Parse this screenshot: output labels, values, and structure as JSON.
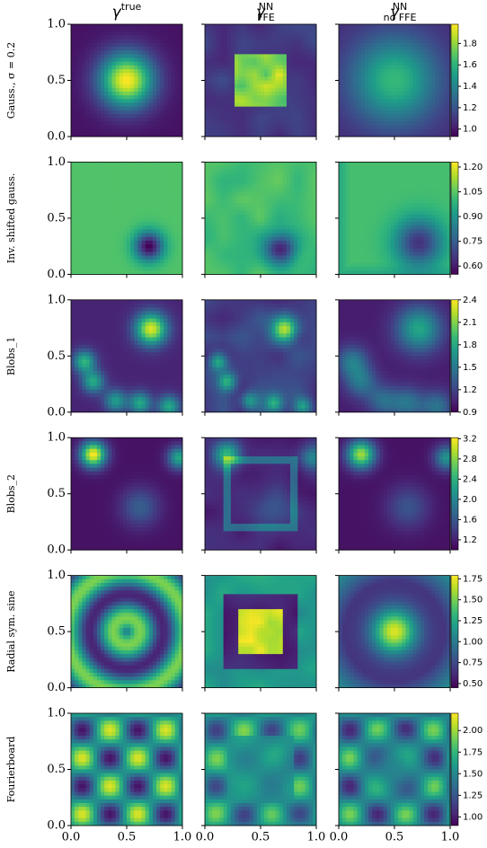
{
  "chart_data": {
    "type": "heatmap-grid",
    "columns": [
      {
        "symbol": "γ",
        "sup": "true"
      },
      {
        "symbol": "γ",
        "sup": "NN",
        "sub": "FFE"
      },
      {
        "symbol": "γ",
        "sup": "NN",
        "sub": "no FFE"
      }
    ],
    "xlim": [
      0,
      1
    ],
    "ylim": [
      0,
      1
    ],
    "xticks": [
      {
        "value": 0,
        "label": "0.0"
      },
      0.5,
      {
        "value": 1,
        "label": "1.0"
      }
    ],
    "yticks": [
      {
        "value": 0,
        "label": "0.0"
      },
      0.5,
      {
        "value": 1,
        "label": "1.0"
      }
    ],
    "colormap": "viridis",
    "rows": [
      {
        "label": "Gauss., σ = 0.2",
        "cbar_lim": [
          0.93,
          1.98
        ],
        "cbar_ticks": [
          {
            "value": 1,
            "label": "1.0"
          },
          1.2,
          1.4,
          1.6,
          1.8
        ]
      },
      {
        "label": "Inv. shifted gauss.",
        "cbar_lim": [
          0.55,
          1.23
        ],
        "cbar_ticks": [
          {
            "value": 0.6,
            "label": "0.60"
          },
          {
            "value": 0.75,
            "label": "0.75"
          },
          {
            "value": 0.9,
            "label": "0.90"
          },
          {
            "value": 1.05,
            "label": "1.05"
          },
          {
            "value": 1.2,
            "label": "1.20"
          }
        ]
      },
      {
        "label": "Blobs_1",
        "cbar_lim": [
          0.9,
          2.4
        ],
        "cbar_ticks": [
          0.9,
          1.2,
          1.5,
          1.8,
          2.1,
          2.4
        ]
      },
      {
        "label": "Blobs_2",
        "cbar_lim": [
          1.0,
          3.22
        ],
        "cbar_ticks": [
          1.2,
          1.6,
          {
            "value": 2,
            "label": "2.0"
          },
          2.4,
          2.8,
          3.2
        ]
      },
      {
        "label": "Radial sym. sine",
        "cbar_lim": [
          0.45,
          1.79
        ],
        "cbar_ticks": [
          {
            "value": 0.5,
            "label": "0.50"
          },
          {
            "value": 0.75,
            "label": "0.75"
          },
          {
            "value": 1,
            "label": "1.00"
          },
          {
            "value": 1.25,
            "label": "1.25"
          },
          {
            "value": 1.5,
            "label": "1.50"
          },
          {
            "value": 1.75,
            "label": "1.75"
          }
        ]
      },
      {
        "label": "Fourierboard",
        "cbar_lim": [
          0.9,
          2.2
        ],
        "cbar_ticks": [
          {
            "value": 1,
            "label": "1.00"
          },
          {
            "value": 1.25,
            "label": "1.25"
          },
          {
            "value": 1.5,
            "label": "1.50"
          },
          {
            "value": 1.75,
            "label": "1.75"
          },
          {
            "value": 2,
            "label": "2.00"
          }
        ]
      }
    ]
  }
}
